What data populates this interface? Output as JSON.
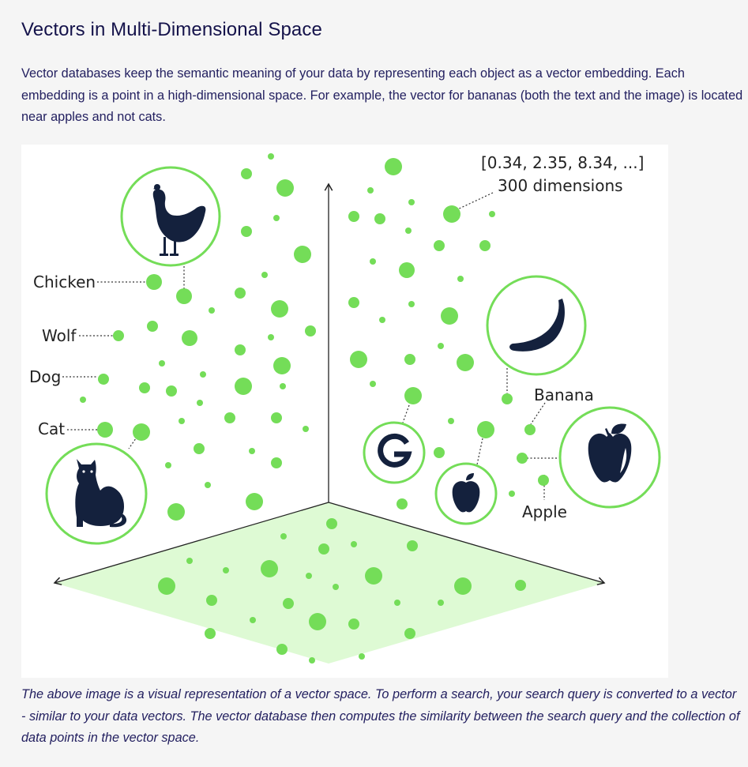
{
  "header": {
    "title": "Vectors in Multi-Dimensional Space"
  },
  "intro": {
    "text": "Vector databases keep the semantic meaning of your data by representing each object as a vector embedding. Each embedding is a point in a high-dimensional space. For example, the vector for bananas (both the text and the image) is located near apples and not cats."
  },
  "figure": {
    "vector_text": "[0.34, 2.35, 8.34, ...]",
    "dimensions_text": "300 dimensions",
    "labels": {
      "chicken": "Chicken",
      "wolf": "Wolf",
      "dog": "Dog",
      "cat": "Cat",
      "banana": "Banana",
      "apple": "Apple"
    },
    "colors": {
      "point": "#74dd58",
      "ring": "#74dd58",
      "floor": "#defad4",
      "icon": "#14213d",
      "axis": "#222222"
    },
    "icons": [
      "chicken-icon",
      "cat-icon",
      "banana-icon",
      "apple-icon",
      "google-icon",
      "apple-logo-icon"
    ]
  },
  "caption": {
    "text": "The above image is a visual representation of a vector space. To perform a search, your search query is converted to a vector - similar to your data vectors. The vector database then computes the similarity between the search query and the collection of data points in the vector space."
  }
}
